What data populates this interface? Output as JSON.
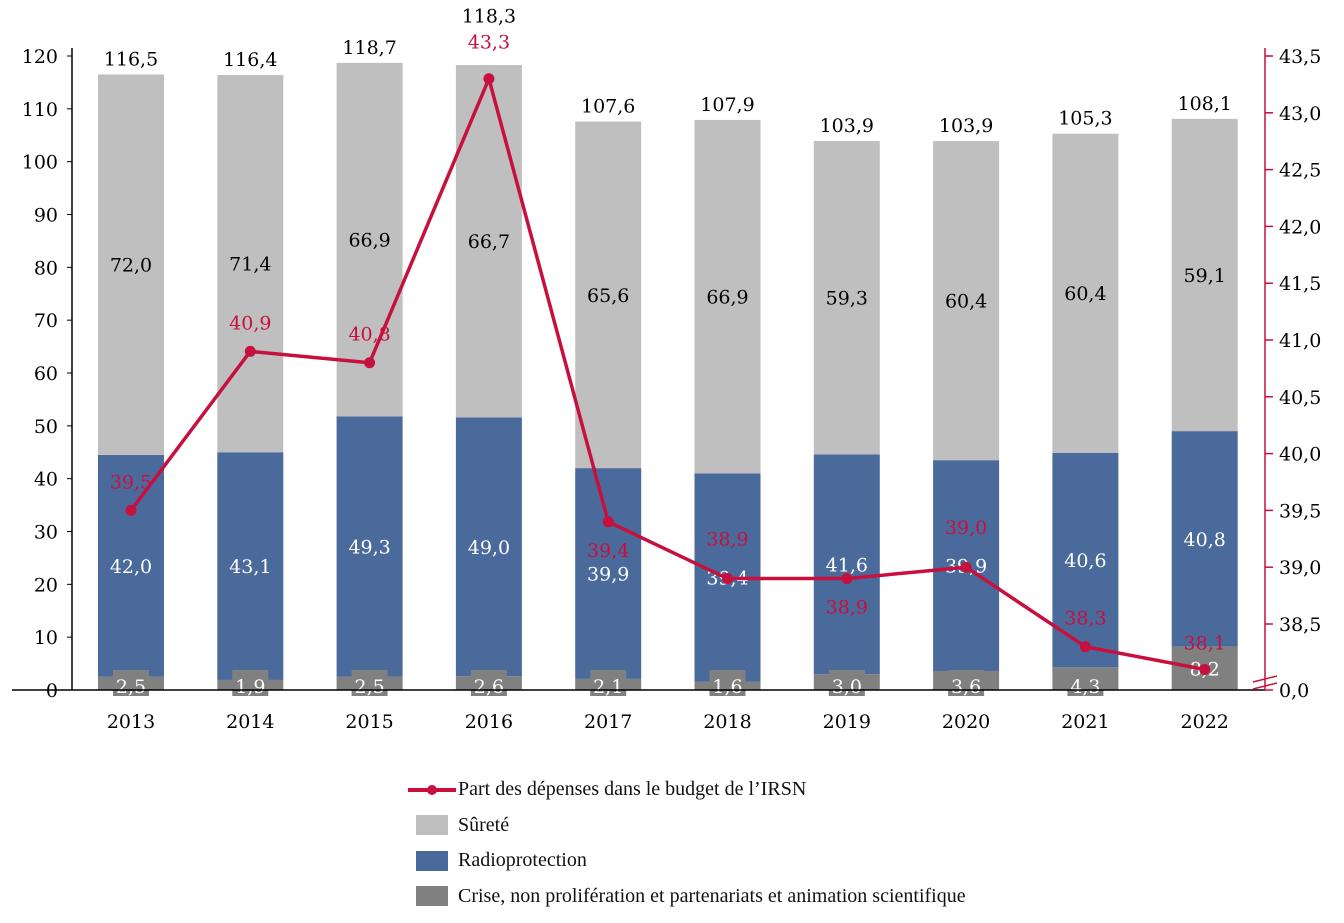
{
  "chart_data": {
    "type": "bar",
    "stacked": true,
    "categories": [
      "2013",
      "2014",
      "2015",
      "2016",
      "2017",
      "2018",
      "2019",
      "2020",
      "2021",
      "2022"
    ],
    "series": [
      {
        "name": "Crise, non prolifération et partenariats et animation scientifique",
        "values": [
          2.5,
          1.9,
          2.5,
          2.6,
          2.1,
          1.6,
          3.0,
          3.6,
          4.3,
          8.2
        ],
        "color": "#808080"
      },
      {
        "name": "Radioprotection",
        "values": [
          42.0,
          43.1,
          49.3,
          49.0,
          39.9,
          39.4,
          41.6,
          39.9,
          40.6,
          40.8
        ],
        "color": "#4A6A9B"
      },
      {
        "name": "Sûreté",
        "values": [
          72.0,
          71.4,
          66.9,
          66.7,
          65.6,
          66.9,
          59.3,
          60.4,
          60.4,
          59.1
        ],
        "color": "#BFBFBF"
      }
    ],
    "totals": [
      116.5,
      116.4,
      118.7,
      118.3,
      107.6,
      107.9,
      103.9,
      103.9,
      105.3,
      108.1
    ],
    "line_series": {
      "name": "Part des dépenses dans le budget de l’IRSN",
      "values": [
        39.5,
        40.9,
        40.8,
        43.3,
        39.4,
        38.9,
        38.9,
        39.0,
        38.3,
        38.1
      ],
      "color": "#C8103E",
      "axis": "right"
    },
    "ylim": [
      0,
      120
    ],
    "yticks": [
      "0",
      "10",
      "20",
      "30",
      "40",
      "50",
      "60",
      "70",
      "80",
      "90",
      "100",
      "110",
      "120"
    ],
    "y2lim": [
      38.0,
      43.5
    ],
    "y2_axis_break": true,
    "y2ticks": [
      "0,0",
      "38,5",
      "39,0",
      "39,5",
      "40,0",
      "40,5",
      "41,0",
      "41,5",
      "42,0",
      "42,5",
      "43,0",
      "43,5"
    ],
    "grid": false,
    "legend_position": "bottom",
    "decimal_separator": ","
  }
}
